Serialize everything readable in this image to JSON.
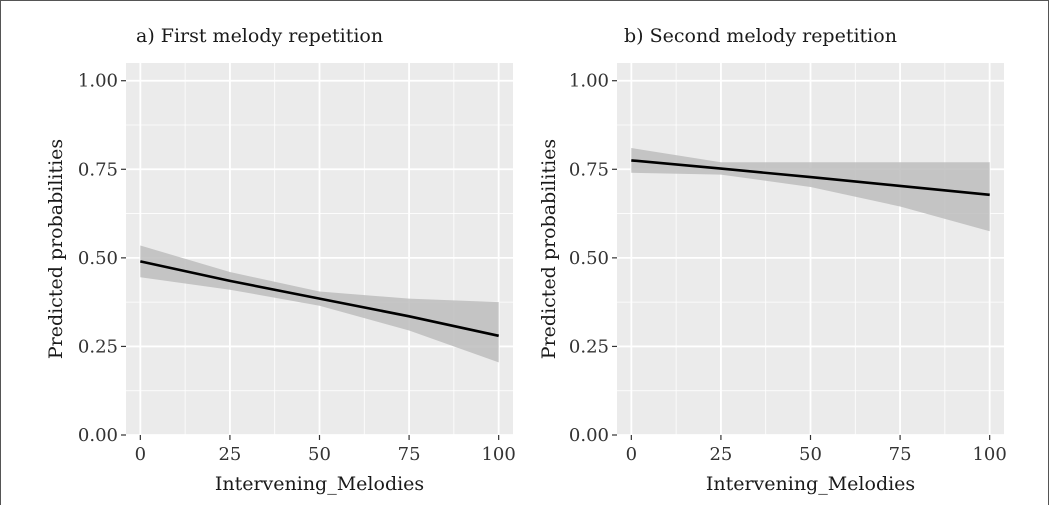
{
  "chart_data": [
    {
      "type": "line",
      "title": "a) First melody repetition",
      "xlabel": "Intervening_Melodies",
      "ylabel": "Predicted probabilities",
      "xlim": [
        -4,
        104
      ],
      "ylim": [
        0,
        1.05
      ],
      "x_ticks": [
        0,
        25,
        50,
        75,
        100
      ],
      "x_tick_labels": [
        "0",
        "25",
        "50",
        "75",
        "100"
      ],
      "y_ticks": [
        0,
        0.25,
        0.5,
        0.75,
        1.0
      ],
      "y_tick_labels": [
        "0.00",
        "0.25",
        "0.50",
        "0.75",
        "1.00"
      ],
      "grid": true,
      "series": [
        {
          "x": [
            0,
            25,
            50,
            75,
            100
          ],
          "y": [
            0.49,
            0.435,
            0.385,
            0.335,
            0.28
          ],
          "ci_lower": [
            0.445,
            0.41,
            0.365,
            0.295,
            0.205
          ],
          "ci_upper": [
            0.535,
            0.46,
            0.405,
            0.385,
            0.375
          ]
        }
      ]
    },
    {
      "type": "line",
      "title": "b) Second melody repetition",
      "xlabel": "Intervening_Melodies",
      "ylabel": "Predicted probabilities",
      "xlim": [
        -4,
        104
      ],
      "ylim": [
        0,
        1.05
      ],
      "x_ticks": [
        0,
        25,
        50,
        75,
        100
      ],
      "x_tick_labels": [
        "0",
        "25",
        "50",
        "75",
        "100"
      ],
      "y_ticks": [
        0,
        0.25,
        0.5,
        0.75,
        1.0
      ],
      "y_tick_labels": [
        "0.00",
        "0.25",
        "0.50",
        "0.75",
        "1.00"
      ],
      "grid": true,
      "series": [
        {
          "x": [
            0,
            25,
            50,
            75,
            100
          ],
          "y": [
            0.775,
            0.752,
            0.728,
            0.703,
            0.678
          ],
          "ci_lower": [
            0.74,
            0.735,
            0.7,
            0.645,
            0.575
          ],
          "ci_upper": [
            0.81,
            0.77,
            0.77,
            0.77,
            0.77
          ]
        }
      ]
    }
  ],
  "colors": {
    "panel_background": "#ebebeb",
    "grid": "#ffffff",
    "ribbon": "#bdbdbd",
    "line": "#000000",
    "tick": "#333333"
  }
}
